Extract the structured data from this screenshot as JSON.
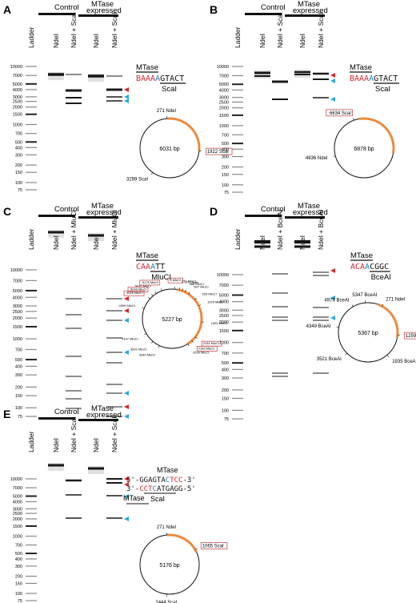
{
  "colors": {
    "red": "#d7282f",
    "blue": "#1f7fc2",
    "cyan": "#2aa9df",
    "orange": "#ee8a3c",
    "label_box": "#c0393b",
    "gel_band": "#1a1a1a",
    "ladder_band": "#555555"
  },
  "ladder_sizes": [
    "10000",
    "7000",
    "5000",
    "4000",
    "3000",
    "2500",
    "2000",
    "1500",
    "1000",
    "700",
    "500",
    "400",
    "300",
    "200",
    "150",
    "100",
    "75"
  ],
  "panels": [
    {
      "letter": "A",
      "group_labels": [
        "Control",
        "MTase\nexpressed"
      ],
      "lanes": [
        "Ladder",
        "NdeI",
        "NdeI + ScaI",
        "NdeI",
        "NdeI + ScaI"
      ],
      "site": {
        "title": "MTase",
        "segments": [
          {
            "t": "BAAA",
            "c": "red"
          },
          {
            "t": "A",
            "c": "blue"
          },
          {
            "t": "GTACT",
            "c": "black"
          }
        ],
        "enzyme": "ScaI"
      },
      "plasmid": {
        "size": "6031 bp",
        "labels": [
          {
            "text": "271 NdeI",
            "angle": 355,
            "boxed": false
          },
          {
            "text": "1922 ScaI",
            "angle": 95,
            "boxed": true
          },
          {
            "text": "3299 ScaI",
            "angle": 215,
            "boxed": false
          }
        ],
        "arc": [
          355,
          95
        ]
      }
    },
    {
      "letter": "B",
      "group_labels": [
        "Control",
        "MTase\nexpressed"
      ],
      "lanes": [
        "Ladder",
        "NdeI",
        "NdeI + ScaI",
        "NdeI",
        "NdeI + ScaI"
      ],
      "site": {
        "title": "MTase",
        "segments": [
          {
            "t": "BAAA",
            "c": "red"
          },
          {
            "t": "A",
            "c": "blue"
          },
          {
            "t": "GTACT",
            "c": "black"
          }
        ],
        "enzyme": "ScaI"
      },
      "plasmid": {
        "size": "6878 bp",
        "labels": [
          {
            "text": "6634 ScaI",
            "angle": 340,
            "boxed": true
          },
          {
            "text": "4836 NdeI",
            "angle": 255,
            "boxed": false
          }
        ],
        "arc": [
          350,
          100
        ]
      }
    },
    {
      "letter": "C",
      "group_labels": [
        "Control",
        "MTase\nexpressed"
      ],
      "lanes": [
        "Ladder",
        "NdeI",
        "NdeI + MluCI",
        "NdeI",
        "NdeI + MluCI"
      ],
      "site": {
        "title": "MTase",
        "segments": [
          {
            "t": "CAA",
            "c": "red"
          },
          {
            "t": "A",
            "c": "blue"
          },
          {
            "t": "TT",
            "c": "black"
          }
        ],
        "enzyme": "MluCI"
      },
      "plasmid": {
        "size": "5227 bp",
        "labels": [
          {
            "text": "8 MluCI",
            "angle": 5,
            "boxed": true
          },
          {
            "text": "230 MluCI",
            "angle": 14,
            "boxed": false
          },
          {
            "text": "271 NdeI",
            "angle": 20,
            "boxed": false
          },
          {
            "text": "366 MluCI",
            "angle": 26,
            "boxed": false
          },
          {
            "text": "507 MluCI",
            "angle": 34,
            "boxed": false
          },
          {
            "text": "928 MluCI",
            "angle": 50,
            "boxed": false
          },
          {
            "text": "1024 MluCI",
            "angle": 64,
            "boxed": false
          },
          {
            "text": "1402 MluCI",
            "angle": 96,
            "boxed": false
          },
          {
            "text": "2134 MluCI",
            "angle": 128,
            "boxed": true
          },
          {
            "text": "2189 MluCI",
            "angle": 138,
            "boxed": true
          },
          {
            "text": "2299 MluCI",
            "angle": 148,
            "boxed": false
          },
          {
            "text": "3340 MluCI",
            "angle": 205,
            "boxed": false
          },
          {
            "text": "3601 MluCI",
            "angle": 220,
            "boxed": false
          },
          {
            "text": "4107 MluCI",
            "angle": 240,
            "boxed": false
          },
          {
            "text": "4909 MluCI",
            "angle": 290,
            "boxed": false
          },
          {
            "text": "5026 MluCI",
            "angle": 312,
            "boxed": true
          },
          {
            "text": "5049 MluCI",
            "angle": 320,
            "boxed": true
          },
          {
            "text": "5070 MluCI",
            "angle": 328,
            "boxed": false
          },
          {
            "text": "5178 MluCI",
            "angle": 340,
            "boxed": true
          }
        ],
        "arc": [
          10,
          150
        ]
      }
    },
    {
      "letter": "D",
      "group_labels": [
        "Control",
        "MTase\nexpressed"
      ],
      "lanes": [
        "Ladder",
        "NdeI",
        "NdeI + BceAI",
        "NdeI",
        "NdeI + BceAI"
      ],
      "site": {
        "title": "MTase",
        "segments": [
          {
            "t": "ACA",
            "c": "red"
          },
          {
            "t": "A",
            "c": "blue"
          },
          {
            "t": "CGGC",
            "c": "black"
          }
        ],
        "enzyme": "BceAI"
      },
      "plasmid": {
        "size": "5367 bp",
        "labels": [
          {
            "text": "5347 BceAI",
            "angle": 355,
            "boxed": false
          },
          {
            "text": "271 NdeI",
            "angle": 28,
            "boxed": false
          },
          {
            "text": "4976 BceAI",
            "angle": 330,
            "boxed": false
          },
          {
            "text": "4349 BceAI",
            "angle": 280,
            "boxed": false
          },
          {
            "text": "1259 BceAI",
            "angle": 95,
            "boxed": true
          },
          {
            "text": "1935 BceAI",
            "angle": 140,
            "boxed": false
          },
          {
            "text": "3521 BceAI",
            "angle": 225,
            "boxed": false
          }
        ],
        "arc": [
          20,
          100
        ]
      }
    },
    {
      "letter": "E",
      "group_labels": [
        "Control",
        "MTase\nexpressed"
      ],
      "lanes": [
        "Ladder",
        "NdeI",
        "NdeI + ScaI",
        "NdeI",
        "NdeI + ScaI"
      ],
      "dsite": {
        "title": "MTase",
        "top": [
          {
            "t": "5'-GGAGTA",
            "c": "black"
          },
          {
            "t": "C",
            "c": "blue"
          },
          {
            "t": "TCC",
            "c": "red"
          },
          {
            "t": "-3'",
            "c": "black"
          }
        ],
        "bottom": [
          {
            "t": "3'-",
            "c": "black"
          },
          {
            "t": "CCT",
            "c": "red"
          },
          {
            "t": "C",
            "c": "blue"
          },
          {
            "t": "ATGAGG-5'",
            "c": "black"
          }
        ],
        "left_label": "MTase",
        "enzyme": "ScaI"
      },
      "plasmid": {
        "size": "5176 bp",
        "labels": [
          {
            "text": "271 NdeI",
            "angle": 355,
            "boxed": false
          },
          {
            "text": "1065 ScaI",
            "angle": 60,
            "boxed": true
          },
          {
            "text": "2444 ScaI",
            "angle": 185,
            "boxed": false
          }
        ],
        "arc": [
          355,
          65
        ]
      }
    }
  ]
}
